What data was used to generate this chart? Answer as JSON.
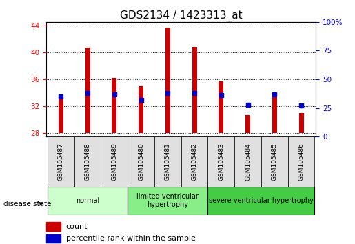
{
  "title": "GDS2134 / 1423313_at",
  "samples": [
    "GSM105487",
    "GSM105488",
    "GSM105489",
    "GSM105480",
    "GSM105481",
    "GSM105482",
    "GSM105483",
    "GSM105484",
    "GSM105485",
    "GSM105486"
  ],
  "bar_heights": [
    33.3,
    40.7,
    36.2,
    35.0,
    43.7,
    40.8,
    35.7,
    30.7,
    33.5,
    31.0
  ],
  "baseline": 28,
  "ylim_left": [
    27.5,
    44.5
  ],
  "yticks_left": [
    28,
    32,
    36,
    40,
    44
  ],
  "ylim_right": [
    0,
    100
  ],
  "yticks_right": [
    0,
    25,
    50,
    75,
    100
  ],
  "bar_color": "#cc0000",
  "bar_width": 0.18,
  "blue_color": "#0000cc",
  "percentile_ranks": [
    35,
    38,
    37,
    32,
    38,
    38,
    36,
    28,
    37,
    27
  ],
  "groups": [
    {
      "label": "normal",
      "start": 0,
      "end": 3,
      "color": "#ccffcc"
    },
    {
      "label": "limited ventricular\nhypertrophy",
      "start": 3,
      "end": 6,
      "color": "#88ee88"
    },
    {
      "label": "severe ventricular hypertrophy",
      "start": 6,
      "end": 10,
      "color": "#44cc44"
    }
  ],
  "disease_state_label": "disease state",
  "legend_count_label": "count",
  "legend_pct_label": "percentile rank within the sample",
  "title_fontsize": 11,
  "tick_fontsize": 7.5,
  "bg_color": "#f0f0f0"
}
